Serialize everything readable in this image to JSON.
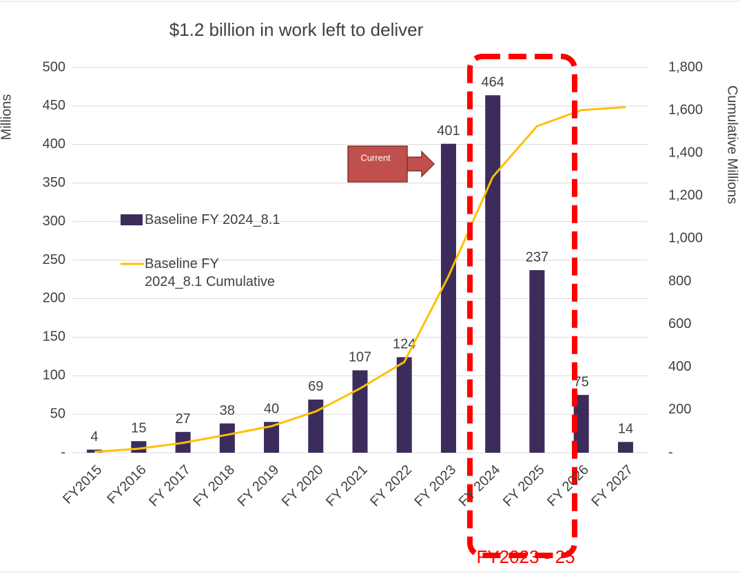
{
  "chart_data": {
    "type": "bar",
    "title": "$1.2 billion in work left to deliver",
    "y_label": "Millions",
    "y2_label": "Cumulative Millions",
    "categories": [
      "FY2015",
      "FY2016",
      "FY 2017",
      "FY 2018",
      "FY 2019",
      "FY 2020",
      "FY 2021",
      "FY 2022",
      "FY 2023",
      "FY 2024",
      "FY 2025",
      "FY 2026",
      "FY 2027"
    ],
    "series": [
      {
        "name": "Baseline FY 2024_8.1",
        "type": "bar",
        "color": "#3b2c5c",
        "values": [
          4,
          15,
          27,
          38,
          40,
          69,
          107,
          124,
          401,
          464,
          237,
          75,
          14
        ]
      },
      {
        "name": "Baseline FY 2024_8.1 Cumulative",
        "type": "line",
        "axis": "y2",
        "color": "#ffc000",
        "values": [
          4,
          19,
          46,
          84,
          124,
          193,
          300,
          424,
          825,
          1289,
          1526,
          1601,
          1615
        ]
      }
    ],
    "ylim": [
      0,
      500
    ],
    "yticks": [
      {
        "value": 0,
        "label": "-"
      },
      50,
      100,
      150,
      200,
      250,
      300,
      350,
      400,
      450,
      500
    ],
    "y2lim": [
      0,
      1800
    ],
    "y2ticks": [
      {
        "value": 0,
        "label": "-"
      },
      200,
      400,
      600,
      800,
      {
        "value": 1000,
        "label": "1,000"
      },
      {
        "value": 1200,
        "label": "1,200"
      },
      {
        "value": 1400,
        "label": "1,400"
      },
      {
        "value": 1600,
        "label": "1,600"
      },
      {
        "value": 1800,
        "label": "1,800"
      }
    ],
    "grid": true,
    "legend": "left",
    "annotations": [
      {
        "text": "Current"
      },
      {
        "text": "FY2023 - 25"
      }
    ]
  }
}
